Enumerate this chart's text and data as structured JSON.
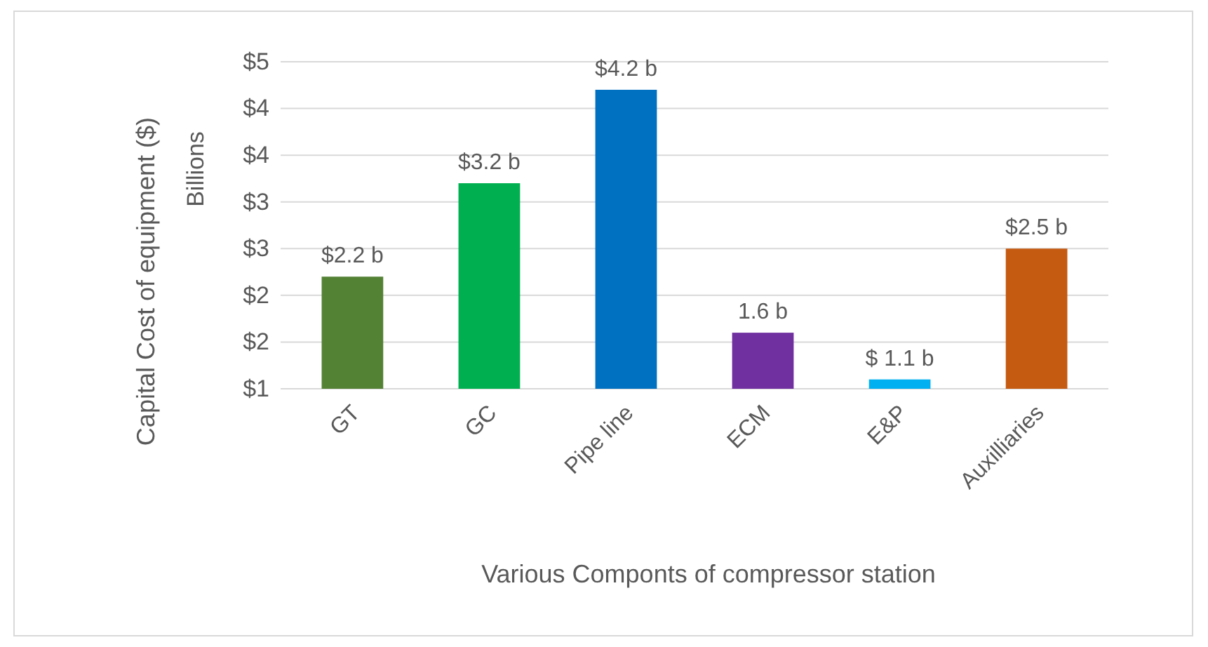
{
  "chart_data": {
    "type": "bar",
    "ylabel": "Capital Cost of equipment ($)",
    "xlabel": "Various Componts of compressor station",
    "annotations": [
      "Billions"
    ],
    "categories": [
      "GT",
      "GC",
      "Pipe line",
      "ECM",
      "E&P",
      "Auxilliaries"
    ],
    "values": [
      2.2,
      3.2,
      4.2,
      1.6,
      1.1,
      2.5
    ],
    "colors": [
      "#548235",
      "#00b050",
      "#0070c0",
      "#7030a0",
      "#00b0f0",
      "#c55a11"
    ],
    "value_labels": [
      "$2.2 b",
      "$3.2 b",
      "$4.2 b",
      "1.6 b",
      "$ 1.1 b",
      "$2.5 b"
    ],
    "ylim": [
      1,
      4.5
    ],
    "yticks": [
      {
        "value": 1,
        "label": "$1"
      },
      {
        "value": 1.5,
        "label": "$2"
      },
      {
        "value": 2,
        "label": "$2"
      },
      {
        "value": 2.5,
        "label": "$3"
      },
      {
        "value": 3,
        "label": "$3"
      },
      {
        "value": 3.5,
        "label": "$4"
      },
      {
        "value": 4,
        "label": "$4"
      },
      {
        "value": 4.5,
        "label": "$5"
      }
    ],
    "grid": "y"
  }
}
